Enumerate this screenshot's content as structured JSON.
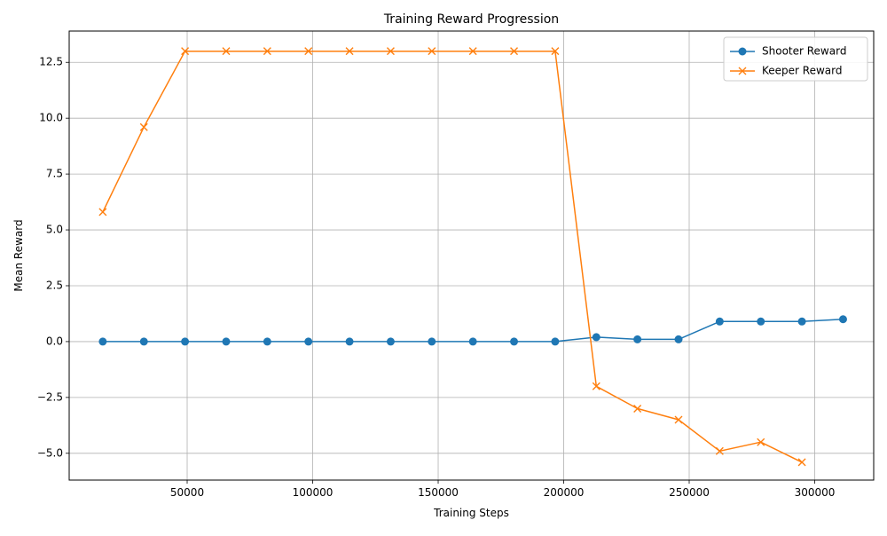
{
  "chart_data": {
    "type": "line",
    "title": "Training Reward Progression",
    "xlabel": "Training Steps",
    "ylabel": "Mean Reward",
    "xlim": [
      3000,
      323500
    ],
    "ylim": [
      -6.2,
      13.9
    ],
    "xticks": [
      50000,
      100000,
      150000,
      200000,
      250000,
      300000
    ],
    "yticks": [
      -5.0,
      -2.5,
      0.0,
      2.5,
      5.0,
      7.5,
      10.0,
      12.5
    ],
    "ytick_labels": [
      "−5.0",
      "−2.5",
      "0.0",
      "2.5",
      "5.0",
      "7.5",
      "10.0",
      "12.5"
    ],
    "grid": true,
    "legend_position": "top-right",
    "series": [
      {
        "name": "Shooter Reward",
        "color": "#1f77b4",
        "marker": "circle",
        "x": [
          16384,
          32768,
          49152,
          65536,
          81920,
          98304,
          114688,
          131072,
          147456,
          163840,
          180224,
          196608,
          212992,
          229376,
          245760,
          262144,
          278528,
          294912,
          311296
        ],
        "y": [
          0.0,
          0.0,
          0.0,
          0.0,
          0.0,
          0.0,
          0.0,
          0.0,
          0.0,
          0.0,
          0.0,
          0.0,
          0.2,
          0.1,
          0.1,
          0.9,
          0.9,
          0.9,
          1.0
        ]
      },
      {
        "name": "Keeper Reward",
        "color": "#ff7f0e",
        "marker": "x",
        "x": [
          16384,
          32768,
          49152,
          65536,
          81920,
          98304,
          114688,
          131072,
          147456,
          163840,
          180224,
          196608,
          212992,
          229376,
          245760,
          262144,
          278528,
          294912
        ],
        "y": [
          5.8,
          9.6,
          13.0,
          13.0,
          13.0,
          13.0,
          13.0,
          13.0,
          13.0,
          13.0,
          13.0,
          13.0,
          -2.0,
          -3.0,
          -3.5,
          -4.9,
          -4.5,
          -5.4
        ]
      }
    ]
  }
}
